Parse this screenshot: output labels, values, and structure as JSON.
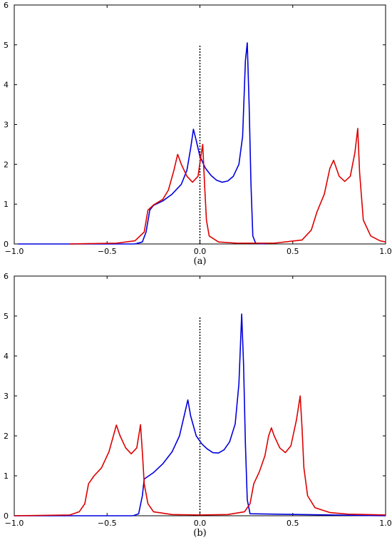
{
  "chart_data": [
    {
      "type": "line",
      "panel_label": "(a)",
      "title": "",
      "xlabel": "",
      "ylabel": "",
      "xlim": [
        -1.0,
        1.0
      ],
      "ylim": [
        0,
        6
      ],
      "x_ticks": [
        "−1.0",
        "−0.5",
        "0.0",
        "0.5",
        "1.0"
      ],
      "x_tick_values": [
        -1.0,
        -0.5,
        0.0,
        0.5,
        1.0
      ],
      "y_ticks": [
        "0",
        "1",
        "2",
        "3",
        "4",
        "5",
        "6"
      ],
      "y_tick_values": [
        0,
        1,
        2,
        3,
        4,
        5,
        6
      ],
      "grid": false,
      "legend": "none",
      "vline": {
        "x": 0.0,
        "y_range": [
          0,
          5
        ],
        "style": "dotted",
        "color": "#000000"
      },
      "series": [
        {
          "color": "#0000dd",
          "points": [
            [
              -0.98,
              0
            ],
            [
              -0.35,
              0
            ],
            [
              -0.31,
              0.05
            ],
            [
              -0.29,
              0.3
            ],
            [
              -0.27,
              0.85
            ],
            [
              -0.25,
              0.97
            ],
            [
              -0.2,
              1.08
            ],
            [
              -0.15,
              1.25
            ],
            [
              -0.1,
              1.5
            ],
            [
              -0.07,
              1.85
            ],
            [
              -0.05,
              2.4
            ],
            [
              -0.035,
              2.88
            ],
            [
              -0.02,
              2.6
            ],
            [
              0.0,
              2.2
            ],
            [
              0.03,
              1.9
            ],
            [
              0.06,
              1.72
            ],
            [
              0.09,
              1.6
            ],
            [
              0.12,
              1.55
            ],
            [
              0.15,
              1.58
            ],
            [
              0.18,
              1.7
            ],
            [
              0.21,
              2.0
            ],
            [
              0.23,
              2.7
            ],
            [
              0.245,
              4.6
            ],
            [
              0.255,
              5.05
            ],
            [
              0.265,
              3.5
            ],
            [
              0.275,
              1.5
            ],
            [
              0.285,
              0.2
            ],
            [
              0.3,
              0.02
            ],
            [
              0.35,
              0
            ]
          ]
        },
        {
          "color": "#dd0000",
          "points": [
            [
              -0.7,
              0
            ],
            [
              -0.45,
              0.02
            ],
            [
              -0.35,
              0.08
            ],
            [
              -0.3,
              0.3
            ],
            [
              -0.28,
              0.85
            ],
            [
              -0.25,
              0.98
            ],
            [
              -0.2,
              1.12
            ],
            [
              -0.17,
              1.35
            ],
            [
              -0.14,
              1.85
            ],
            [
              -0.12,
              2.25
            ],
            [
              -0.1,
              2.0
            ],
            [
              -0.07,
              1.7
            ],
            [
              -0.04,
              1.55
            ],
            [
              -0.01,
              1.7
            ],
            [
              0.005,
              2.2
            ],
            [
              0.015,
              2.5
            ],
            [
              0.025,
              1.5
            ],
            [
              0.035,
              0.6
            ],
            [
              0.05,
              0.2
            ],
            [
              0.1,
              0.05
            ],
            [
              0.2,
              0.02
            ],
            [
              0.4,
              0.02
            ],
            [
              0.55,
              0.1
            ],
            [
              0.6,
              0.35
            ],
            [
              0.63,
              0.8
            ],
            [
              0.67,
              1.25
            ],
            [
              0.7,
              1.9
            ],
            [
              0.72,
              2.1
            ],
            [
              0.75,
              1.7
            ],
            [
              0.78,
              1.57
            ],
            [
              0.81,
              1.7
            ],
            [
              0.835,
              2.3
            ],
            [
              0.85,
              2.9
            ],
            [
              0.86,
              1.8
            ],
            [
              0.88,
              0.6
            ],
            [
              0.92,
              0.2
            ],
            [
              0.97,
              0.08
            ],
            [
              1.0,
              0.05
            ]
          ]
        }
      ]
    },
    {
      "type": "line",
      "panel_label": "(b)",
      "title": "",
      "xlabel": "",
      "ylabel": "",
      "xlim": [
        -1.0,
        1.0
      ],
      "ylim": [
        0,
        6
      ],
      "x_ticks": [
        "−1.0",
        "−0.5",
        "0.0",
        "0.5",
        "1.0"
      ],
      "x_tick_values": [
        -1.0,
        -0.5,
        0.0,
        0.5,
        1.0
      ],
      "y_ticks": [
        "0",
        "1",
        "2",
        "3",
        "4",
        "5",
        "6"
      ],
      "y_tick_values": [
        0,
        1,
        2,
        3,
        4,
        5,
        6
      ],
      "grid": false,
      "legend": "none",
      "vline": {
        "x": 0.0,
        "y_range": [
          0,
          5
        ],
        "style": "dotted",
        "color": "#000000"
      },
      "series": [
        {
          "color": "#0000dd",
          "points": [
            [
              -1.0,
              0
            ],
            [
              -0.36,
              0
            ],
            [
              -0.33,
              0.05
            ],
            [
              -0.31,
              0.5
            ],
            [
              -0.3,
              0.92
            ],
            [
              -0.25,
              1.08
            ],
            [
              -0.2,
              1.3
            ],
            [
              -0.15,
              1.6
            ],
            [
              -0.11,
              2.0
            ],
            [
              -0.08,
              2.6
            ],
            [
              -0.065,
              2.9
            ],
            [
              -0.05,
              2.5
            ],
            [
              -0.02,
              2.0
            ],
            [
              0.01,
              1.8
            ],
            [
              0.04,
              1.67
            ],
            [
              0.07,
              1.58
            ],
            [
              0.1,
              1.57
            ],
            [
              0.13,
              1.65
            ],
            [
              0.16,
              1.85
            ],
            [
              0.19,
              2.3
            ],
            [
              0.21,
              3.3
            ],
            [
              0.225,
              5.05
            ],
            [
              0.235,
              3.8
            ],
            [
              0.245,
              1.8
            ],
            [
              0.255,
              0.4
            ],
            [
              0.27,
              0.05
            ],
            [
              1.0,
              0
            ]
          ]
        },
        {
          "color": "#dd0000",
          "points": [
            [
              -1.0,
              0
            ],
            [
              -0.7,
              0.02
            ],
            [
              -0.65,
              0.1
            ],
            [
              -0.62,
              0.3
            ],
            [
              -0.6,
              0.8
            ],
            [
              -0.57,
              1.0
            ],
            [
              -0.53,
              1.2
            ],
            [
              -0.49,
              1.6
            ],
            [
              -0.46,
              2.1
            ],
            [
              -0.45,
              2.27
            ],
            [
              -0.43,
              2.0
            ],
            [
              -0.4,
              1.7
            ],
            [
              -0.37,
              1.55
            ],
            [
              -0.34,
              1.7
            ],
            [
              -0.32,
              2.28
            ],
            [
              -0.31,
              1.6
            ],
            [
              -0.3,
              0.8
            ],
            [
              -0.28,
              0.3
            ],
            [
              -0.25,
              0.1
            ],
            [
              -0.15,
              0.03
            ],
            [
              0.0,
              0.02
            ],
            [
              0.15,
              0.03
            ],
            [
              0.24,
              0.1
            ],
            [
              0.27,
              0.3
            ],
            [
              0.29,
              0.8
            ],
            [
              0.32,
              1.1
            ],
            [
              0.35,
              1.5
            ],
            [
              0.37,
              2.0
            ],
            [
              0.385,
              2.2
            ],
            [
              0.4,
              2.0
            ],
            [
              0.43,
              1.7
            ],
            [
              0.46,
              1.58
            ],
            [
              0.49,
              1.75
            ],
            [
              0.52,
              2.4
            ],
            [
              0.54,
              3.0
            ],
            [
              0.55,
              2.2
            ],
            [
              0.56,
              1.2
            ],
            [
              0.58,
              0.5
            ],
            [
              0.62,
              0.2
            ],
            [
              0.7,
              0.08
            ],
            [
              0.8,
              0.04
            ],
            [
              1.0,
              0.02
            ]
          ]
        }
      ]
    }
  ]
}
